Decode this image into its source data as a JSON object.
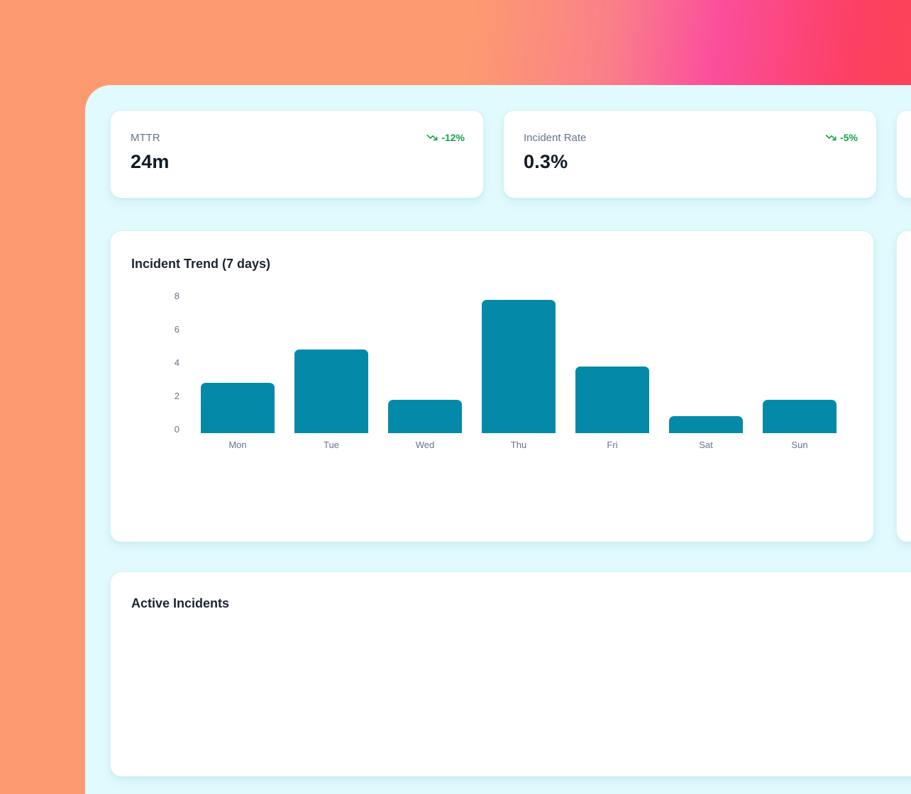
{
  "theme": {
    "background_gradient": [
      "#fd9a71",
      "#fb4f9c",
      "#fc3f63",
      "#fb4649"
    ],
    "panel_bg": "#e1fafd",
    "card_bg": "#ffffff",
    "positive_green": "#16a34a",
    "label_gray": "#64748b",
    "value_dark": "#111a27",
    "bar_teal": "#0589a8"
  },
  "stats": {
    "cards": [
      {
        "label": "MTTR",
        "value": "24m",
        "delta": "-12%",
        "icon": "trending-down-icon"
      },
      {
        "label": "Incident Rate",
        "value": "0.3%",
        "delta": "-5%",
        "icon": "trending-down-icon"
      }
    ],
    "partial_third_card_visible": true
  },
  "chart_data": {
    "type": "bar",
    "title": "Incident Trend (7 days)",
    "categories": [
      "Mon",
      "Tue",
      "Wed",
      "Thu",
      "Fri",
      "Sat",
      "Sun"
    ],
    "values": [
      3,
      5,
      2,
      8,
      4,
      1,
      2
    ],
    "yticks": [
      0,
      2,
      4,
      6,
      8
    ],
    "ylim": [
      0,
      8
    ],
    "xlabel": "",
    "ylabel": "",
    "grid": false,
    "legend": false,
    "bar_color": "#0589a8"
  },
  "sections": {
    "incidents_title": "Active Incidents"
  }
}
